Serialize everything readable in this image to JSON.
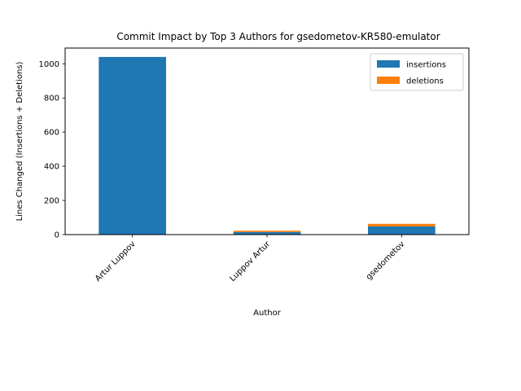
{
  "chart_data": {
    "type": "bar",
    "stacked": true,
    "title": "Commit Impact by Top 3 Authors for gsedometov-KR580-emulator",
    "xlabel": "Author",
    "ylabel": "Lines Changed (Insertions + Deletions)",
    "categories": [
      "Artur Luppov",
      "Luppov Artur",
      "gsedometov"
    ],
    "series": [
      {
        "name": "insertions",
        "values": [
          1040,
          15,
          48
        ],
        "color": "#1f77b4"
      },
      {
        "name": "deletions",
        "values": [
          0,
          8,
          15
        ],
        "color": "#ff7f0e"
      }
    ],
    "ylim": [
      0,
      1092
    ],
    "yticks": [
      0,
      200,
      400,
      600,
      800,
      1000
    ],
    "legend_position": "top-right",
    "grid": false
  }
}
